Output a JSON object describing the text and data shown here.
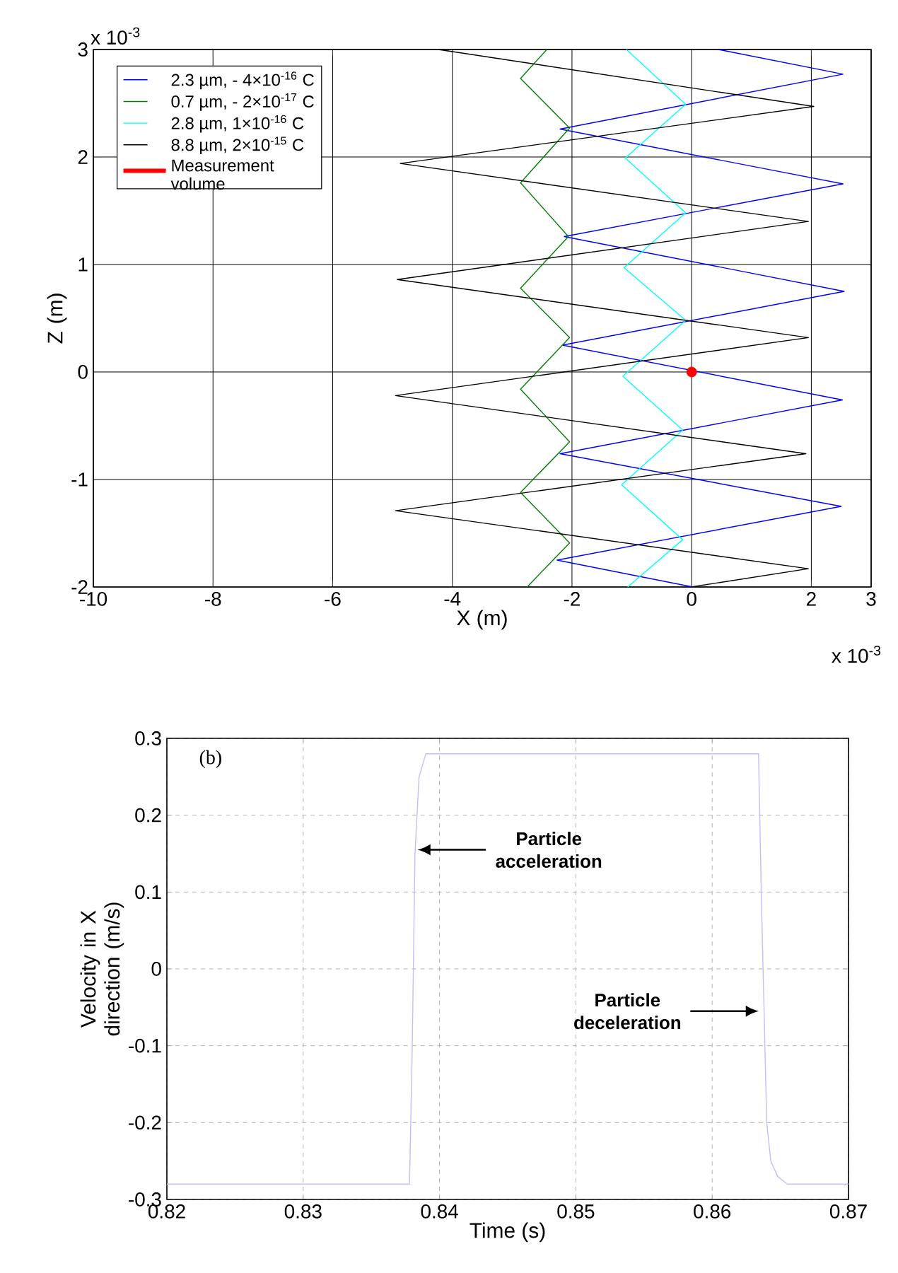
{
  "chart_data": [
    {
      "type": "line",
      "xlabel": "X (m)",
      "ylabel": "Z (m)",
      "xlim": [
        -10,
        3
      ],
      "xticks": [
        -10,
        -8,
        -6,
        -4,
        -2,
        0,
        2,
        3
      ],
      "ylim": [
        -2,
        3
      ],
      "yticks": [
        -2,
        -1,
        0,
        1,
        2,
        3
      ],
      "grid": true,
      "legend": "top left",
      "annotations": [
        "x 10$^{-3}$",
        "x 10$^{-3}$"
      ],
      "series": [
        {
          "name": "2.3 µm, - 4×10$^{-16}$ C",
          "color": "#0000ff",
          "x": [
            0.45,
            2.53,
            -2.2,
            2.53,
            -2.13,
            2.55,
            -2.16,
            2.52,
            -2.2,
            2.5,
            -2.25,
            0.02
          ],
          "values": [
            3,
            2.77,
            2.26,
            1.75,
            1.26,
            0.75,
            0.25,
            -0.26,
            -0.76,
            -1.25,
            -1.75,
            -2
          ]
        },
        {
          "name": "0.7 µm, - 2×10$^{-17}$ C",
          "color": "#008000",
          "x": [
            -2.42,
            -2.86,
            -2.04,
            -2.86,
            -2.06,
            -2.86,
            -2.04,
            -2.86,
            -2.04,
            -2.86,
            -2.04,
            -2.75
          ],
          "values": [
            3,
            2.73,
            2.27,
            1.76,
            1.26,
            0.78,
            0.32,
            -0.16,
            -0.65,
            -1.12,
            -1.59,
            -2
          ]
        },
        {
          "name": "2.8 µm, 1×10$^{-16}$ C",
          "color": "#00ffff",
          "x": [
            -1.09,
            -0.1,
            -1.11,
            -0.1,
            -1.13,
            -0.1,
            -1.15,
            -0.15,
            -1.17,
            -0.15,
            -1.07
          ],
          "values": [
            3,
            2.49,
            1.99,
            1.48,
            0.97,
            0.48,
            -0.04,
            -0.54,
            -1.05,
            -1.56,
            -2
          ]
        },
        {
          "name": "8.8 µm, 2×10$^{-15}$ C",
          "color": "#000000",
          "x": [
            -4.23,
            2.04,
            -4.87,
            1.95,
            -4.92,
            1.95,
            -4.95,
            1.91,
            -4.95,
            1.95,
            -0.01
          ],
          "values": [
            3,
            2.47,
            1.94,
            1.4,
            0.86,
            0.32,
            -0.22,
            -0.76,
            -1.29,
            -1.83,
            -2
          ]
        },
        {
          "name": "Measurement volume",
          "type": "scatter",
          "color": "#ff0000",
          "x": [
            0
          ],
          "values": [
            0
          ]
        }
      ]
    },
    {
      "type": "line",
      "xlabel": "Time (s)",
      "ylabel": "Velocity in X direction (m/s)",
      "xlim": [
        0.82,
        0.87
      ],
      "xticks": [
        0.82,
        0.83,
        0.84,
        0.85,
        0.86,
        0.87
      ],
      "ylim": [
        -0.3,
        0.3
      ],
      "yticks": [
        -0.3,
        -0.2,
        -0.1,
        0,
        0.1,
        0.2,
        0.3
      ],
      "grid": true,
      "annotations": [
        "(b)",
        {
          "text": "Particle acceleration",
          "x": 0.8384,
          "y": 0.155
        },
        {
          "text": "Particle deceleration",
          "x": 0.8634,
          "y": -0.055
        }
      ],
      "series": [
        {
          "color": "#c0c0ff",
          "x": [
            0.82,
            0.8378,
            0.838,
            0.8382,
            0.8385,
            0.839,
            0.8634,
            0.8636,
            0.8638,
            0.864,
            0.8643,
            0.8648,
            0.8655,
            0.87
          ],
          "values": [
            -0.28,
            -0.28,
            -0.1,
            0.15,
            0.25,
            0.28,
            0.28,
            0.1,
            -0.05,
            -0.2,
            -0.25,
            -0.27,
            -0.28,
            -0.28
          ]
        }
      ]
    }
  ]
}
